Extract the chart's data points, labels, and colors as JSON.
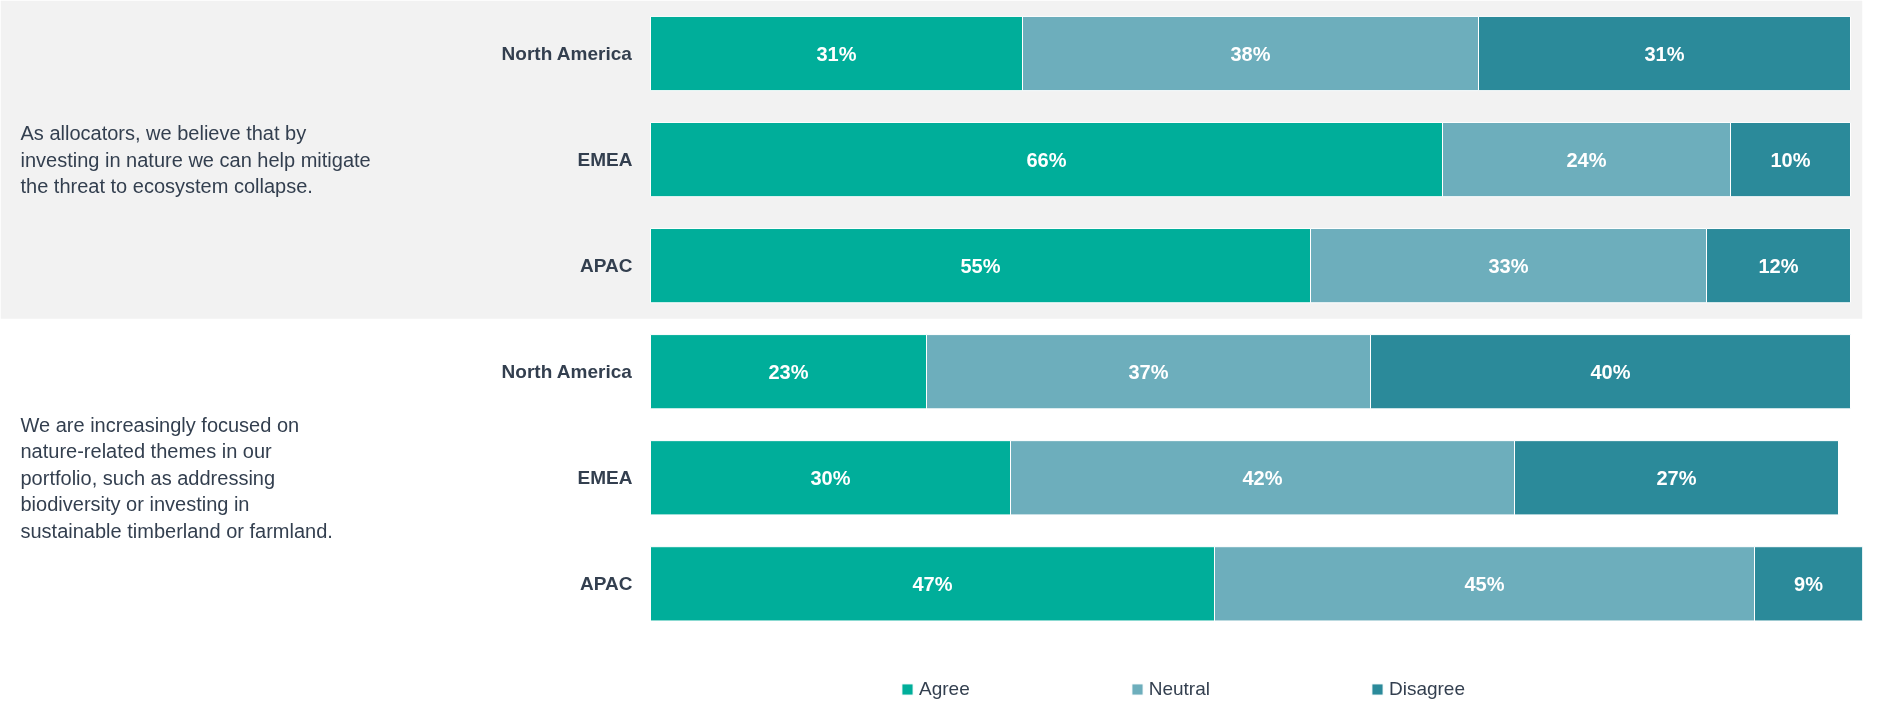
{
  "chart_data": [
    {
      "type": "bar",
      "orientation": "horizontal",
      "stacked": true,
      "tick_labels": "y",
      "annotations": [
        "As allocators, we believe that by investing in nature we can help mitigate the threat to ecosystem collapse."
      ],
      "categories": [
        "North America",
        "EMEA",
        "APAC"
      ],
      "series": [
        {
          "color": "#00ae9a",
          "values": [
            31,
            66,
            55
          ],
          "value_labels": [
            "31%",
            "66%",
            "55%"
          ]
        },
        {
          "color": "#6daebc",
          "values": [
            38,
            24,
            33
          ],
          "value_labels": [
            "38%",
            "24%",
            "33%"
          ]
        },
        {
          "color": "#2b8a9a",
          "values": [
            31,
            10,
            12
          ],
          "value_labels": [
            "31%",
            "10%",
            "12%"
          ]
        }
      ]
    },
    {
      "type": "bar",
      "orientation": "horizontal",
      "stacked": true,
      "legend": "bottom",
      "tick_labels": "y",
      "annotations": [
        "We are increasingly focused on nature-related themes in our portfolio, such as addressing biodiversity or investing in sustainable timberland or farmland."
      ],
      "categories": [
        "North America",
        "EMEA",
        "APAC"
      ],
      "series": [
        {
          "name": "Agree",
          "color": "#00ae9a",
          "values": [
            23,
            30,
            47
          ],
          "value_labels": [
            "23%",
            "30%",
            "47%"
          ]
        },
        {
          "name": "Neutral",
          "color": "#6daebc",
          "values": [
            37,
            42,
            45
          ],
          "value_labels": [
            "37%",
            "42%",
            "45%"
          ]
        },
        {
          "name": "Disagree",
          "color": "#2b8a9a",
          "values": [
            40,
            27,
            9
          ],
          "value_labels": [
            "40%",
            "27%",
            "9%"
          ]
        }
      ]
    }
  ]
}
